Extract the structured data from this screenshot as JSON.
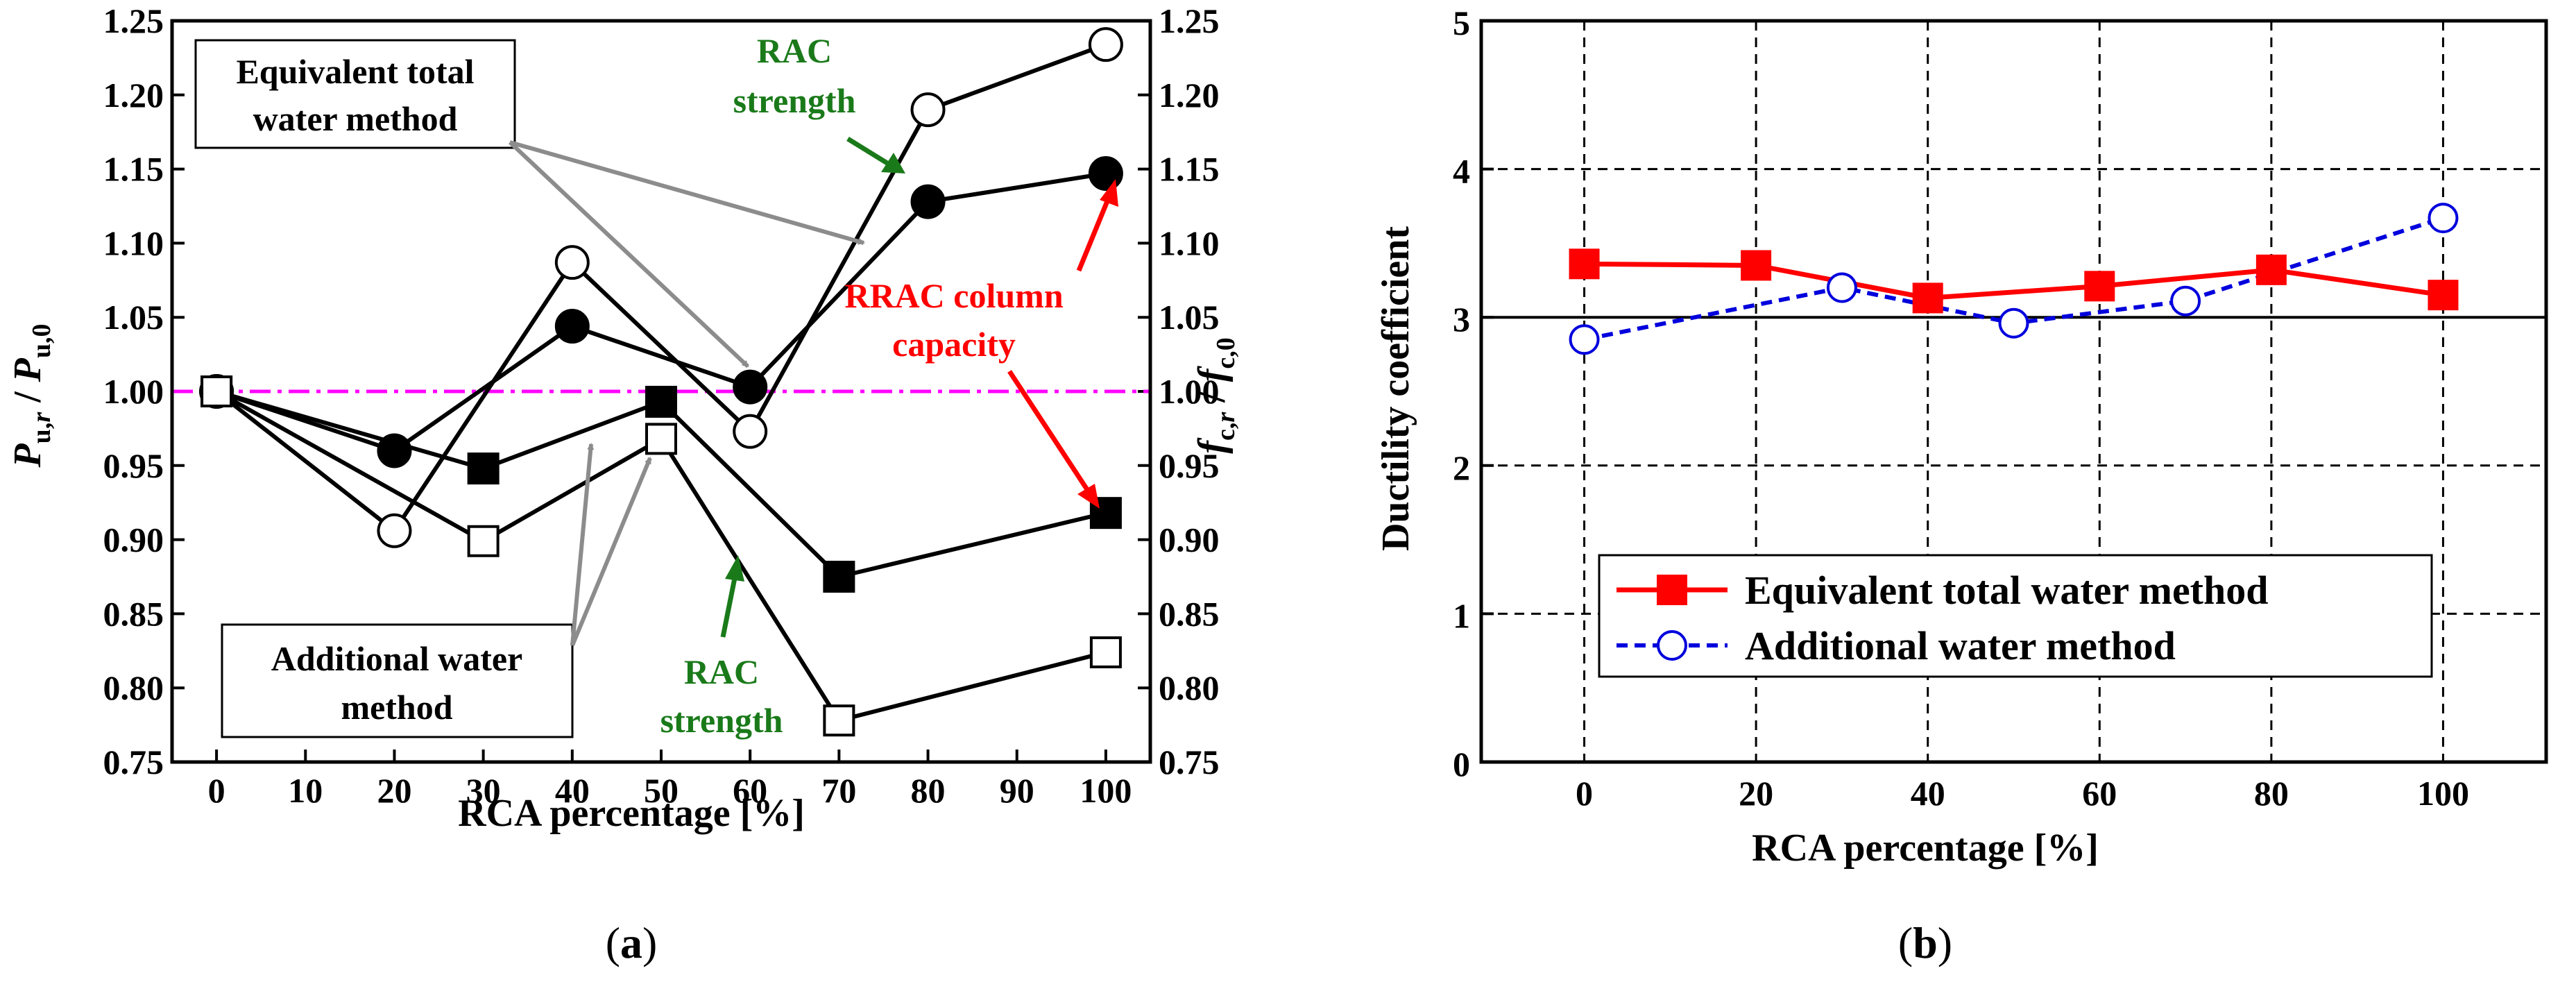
{
  "chart_data": [
    {
      "id": "a",
      "type": "line",
      "caption_open": "(",
      "caption_letter": "a",
      "caption_close": ")",
      "xlabel": "RCA percentage [%]",
      "ylabel_left": "P u,r / P u,0",
      "ylabel_right": "f c,r / f c,0",
      "xlim": [
        -5,
        105
      ],
      "ylim": [
        0.75,
        1.25
      ],
      "x_ticks": [
        0,
        10,
        20,
        30,
        40,
        50,
        60,
        70,
        80,
        90,
        100
      ],
      "y_ticks": [
        0.75,
        0.8,
        0.85,
        0.9,
        0.95,
        1.0,
        1.05,
        1.1,
        1.15,
        1.2,
        1.25
      ],
      "y_tick_labels": [
        "0.75",
        "0.80",
        "0.85",
        "0.90",
        "0.95",
        "1.00",
        "1.05",
        "1.10",
        "1.15",
        "1.20",
        "1.25"
      ],
      "reference_line": 1.0,
      "reference_color": "#ff00ff",
      "series": [
        {
          "name": "Equivalent total water method - RAC strength",
          "marker": "circle-open",
          "x": [
            0,
            20,
            40,
            60,
            80,
            100
          ],
          "values": [
            1.0,
            0.906,
            1.087,
            0.973,
            1.19,
            1.234
          ]
        },
        {
          "name": "Equivalent total water method - RRAC column capacity",
          "marker": "circle-filled",
          "x": [
            0,
            20,
            40,
            60,
            80,
            100
          ],
          "values": [
            1.0,
            0.96,
            1.044,
            1.003,
            1.128,
            1.147
          ]
        },
        {
          "name": "Additional water method - RRAC column capacity",
          "marker": "square-filled",
          "x": [
            0,
            30,
            50,
            70,
            100
          ],
          "values": [
            1.0,
            0.948,
            0.993,
            0.875,
            0.918
          ]
        },
        {
          "name": "Additional water method - RAC strength",
          "marker": "square-open",
          "x": [
            0,
            30,
            50,
            70,
            100
          ],
          "values": [
            1.0,
            0.899,
            0.968,
            0.778,
            0.824
          ]
        }
      ],
      "annotations": {
        "box1_line1": "Equivalent total",
        "box1_line2": "water method",
        "box2_line1": "Additional  water",
        "box2_line2": "method",
        "rac_top_line1": "RAC",
        "rac_top_line2": "strength",
        "rac_bottom_line1": "RAC",
        "rac_bottom_line2": "strength",
        "rrac_line1": "RRAC column",
        "rrac_line2": "capacity",
        "green": "#1a7a1a",
        "red": "#ff0000",
        "gray": "#8c8c8c"
      }
    },
    {
      "id": "b",
      "type": "line",
      "caption_open": "(",
      "caption_letter": "b",
      "caption_close": ")",
      "xlabel": "RCA percentage [%]",
      "ylabel": "Ductility coefficient",
      "xlim": [
        -12,
        112
      ],
      "ylim": [
        0,
        5
      ],
      "x_ticks": [
        0,
        20,
        40,
        60,
        80,
        100
      ],
      "y_ticks": [
        0,
        1,
        2,
        3,
        4,
        5
      ],
      "reference_line": 3,
      "grid": "dashed",
      "legend_position": "bottom-left",
      "series": [
        {
          "name": "Equivalent total water method",
          "color": "#ff0000",
          "marker": "square-filled",
          "style": "solid",
          "x": [
            0,
            20,
            40,
            60,
            80,
            100
          ],
          "values": [
            3.36,
            3.35,
            3.13,
            3.21,
            3.32,
            3.15
          ]
        },
        {
          "name": "Additional water method",
          "color": "#0000dd",
          "marker": "circle-open",
          "style": "dashed",
          "x": [
            0,
            30,
            50,
            70,
            100
          ],
          "values": [
            2.85,
            3.2,
            2.96,
            3.11,
            3.67
          ]
        }
      ]
    }
  ]
}
